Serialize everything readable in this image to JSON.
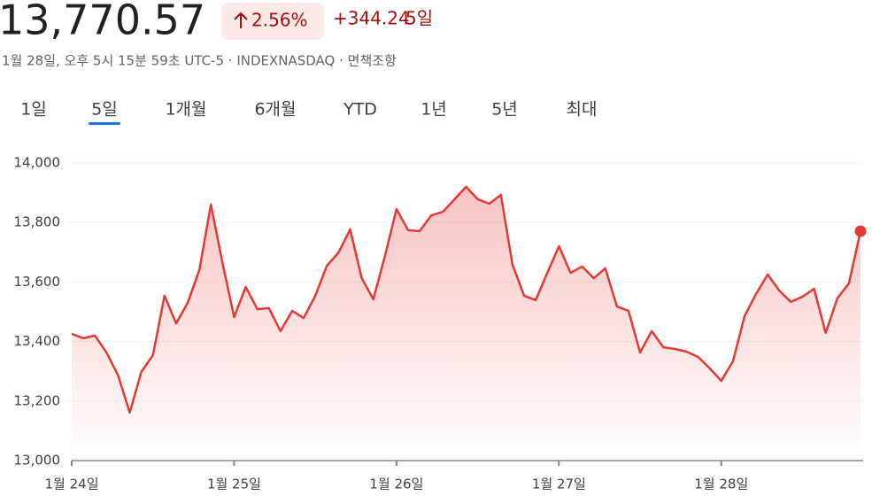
{
  "header": {
    "price": "13,770.57",
    "change_percent": "2.56%",
    "change": "+344.24",
    "period": "5일",
    "subtitle": "1월 28일, 오후 5시 15분 59초 UTC-5 · INDEXNASDAQ · 면책조항"
  },
  "tabs": {
    "items": [
      "1일",
      "5일",
      "1개월",
      "6개월",
      "YTD",
      "1년",
      "5년",
      "최대"
    ],
    "active": 1
  },
  "chart_data": {
    "type": "line",
    "color": "#e53935",
    "grid": true,
    "categories": [
      "1월 24일",
      null,
      null,
      null,
      null,
      null,
      null,
      null,
      null,
      null,
      null,
      null,
      null,
      null,
      "1월 25일",
      null,
      null,
      null,
      null,
      null,
      null,
      null,
      null,
      null,
      null,
      null,
      null,
      null,
      "1월 26일",
      null,
      null,
      null,
      null,
      null,
      null,
      null,
      null,
      null,
      null,
      null,
      null,
      null,
      "1월 27일",
      null,
      null,
      null,
      null,
      null,
      null,
      null,
      null,
      null,
      null,
      null,
      null,
      null,
      "1월 28일",
      null,
      null,
      null,
      null,
      null,
      null,
      null,
      null,
      null,
      null,
      null,
      null
    ],
    "values": [
      13426,
      13411,
      13420,
      13363,
      13286,
      13161,
      13298,
      13354,
      13554,
      13461,
      13530,
      13640,
      13860,
      13664,
      13482,
      13583,
      13509,
      13512,
      13435,
      13503,
      13479,
      13554,
      13655,
      13699,
      13777,
      13613,
      13542,
      13687,
      13845,
      13774,
      13771,
      13824,
      13836,
      13878,
      13920,
      13878,
      13863,
      13893,
      13658,
      13554,
      13539,
      13631,
      13720,
      13631,
      13652,
      13613,
      13646,
      13518,
      13503,
      13363,
      13435,
      13381,
      13375,
      13366,
      13348,
      13310,
      13268,
      13333,
      13485,
      13560,
      13625,
      13571,
      13533,
      13551,
      13577,
      13429,
      13545,
      13595,
      13770.57
    ],
    "ylim": [
      13000,
      14000
    ],
    "yticks": [
      {
        "value": 13000,
        "label": "13,000"
      },
      {
        "value": 13200,
        "label": "13,200"
      },
      {
        "value": 13400,
        "label": "13,400"
      },
      {
        "value": 13600,
        "label": "13,600"
      },
      {
        "value": 13800,
        "label": "13,800"
      },
      {
        "value": 14000,
        "label": "14,000"
      }
    ]
  }
}
